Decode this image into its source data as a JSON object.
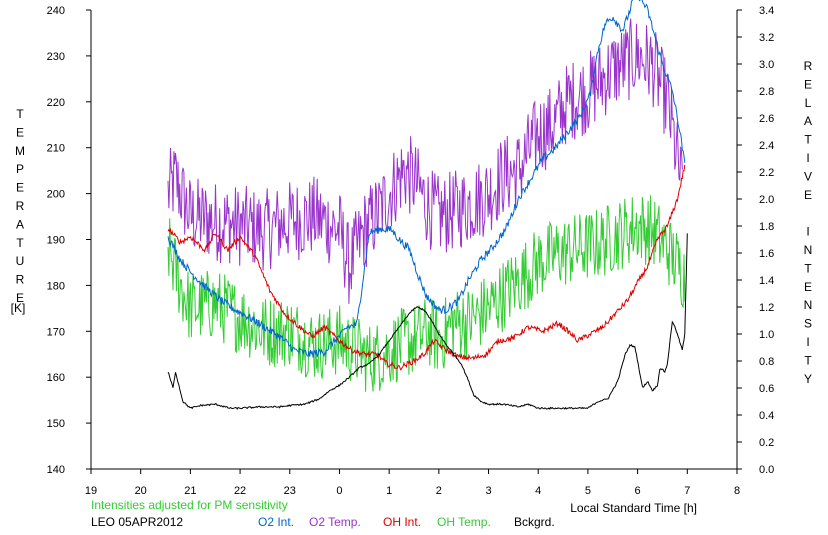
{
  "chart_data": {
    "type": "line",
    "xlabel": "Local Standard Time [h]",
    "left_axis": {
      "label": "TEMPERATURE",
      "unit": "[K]",
      "range": [
        140,
        240
      ],
      "ticks": [
        140,
        150,
        160,
        170,
        180,
        190,
        200,
        210,
        220,
        230,
        240
      ]
    },
    "right_axis": {
      "label": "RELATIVE INTENSITY",
      "range": [
        0.0,
        3.4
      ],
      "ticks": [
        "0.0",
        "0.2",
        "0.4",
        "0.6",
        "0.8",
        "1.0",
        "1.2",
        "1.4",
        "1.6",
        "1.8",
        "2.0",
        "2.2",
        "2.4",
        "2.6",
        "2.8",
        "3.0",
        "3.2",
        "3.4"
      ]
    },
    "x_ticks": [
      "19",
      "20",
      "21",
      "22",
      "23",
      "0",
      "1",
      "2",
      "3",
      "4",
      "5",
      "6",
      "7",
      "8"
    ],
    "grid": false,
    "note": "Intensities adjusted for PM sensitivity",
    "station": "LEO 05APR2012",
    "series": [
      {
        "name": "O2 Int.",
        "axis": "right",
        "color": "#0066cc",
        "jitter": 0.03,
        "x": [
          20.55,
          20.8,
          21.0,
          21.3,
          21.6,
          21.9,
          22.2,
          22.5,
          22.8,
          23.1,
          23.4,
          23.7,
          23.9,
          24.05,
          24.15,
          24.35,
          24.6,
          24.85,
          25.05,
          25.2,
          25.4,
          25.6,
          25.75,
          26.0,
          26.15,
          26.4,
          26.6,
          26.85,
          27.1,
          27.35,
          27.6,
          27.85,
          28.1,
          28.35,
          28.6,
          28.85,
          29.05,
          29.2,
          29.35,
          29.5,
          29.7,
          29.85,
          29.95,
          30.2,
          30.35,
          30.5,
          30.7,
          30.85,
          30.95
        ],
        "y": [
          1.72,
          1.55,
          1.46,
          1.35,
          1.25,
          1.18,
          1.12,
          1.05,
          0.98,
          0.88,
          0.85,
          0.87,
          0.95,
          1.0,
          1.05,
          1.07,
          1.75,
          1.78,
          1.77,
          1.7,
          1.63,
          1.42,
          1.28,
          1.18,
          1.18,
          1.25,
          1.4,
          1.55,
          1.65,
          1.78,
          2.0,
          2.15,
          2.3,
          2.38,
          2.5,
          2.62,
          2.78,
          3.1,
          3.3,
          3.35,
          3.25,
          3.4,
          3.55,
          3.4,
          3.2,
          3.0,
          2.8,
          2.5,
          2.25
        ]
      },
      {
        "name": "O2 Temp.",
        "axis": "left",
        "color": "#9933cc",
        "jitter": 9,
        "x": [
          20.55,
          20.7,
          21.0,
          21.5,
          22.0,
          22.5,
          23.0,
          23.5,
          24.0,
          24.2,
          24.5,
          24.8,
          25.0,
          25.3,
          25.5,
          25.8,
          26.0,
          26.5,
          27.0,
          27.3,
          27.6,
          28.0,
          28.3,
          28.6,
          29.0,
          29.5,
          30.0,
          30.3,
          30.6,
          30.9
        ],
        "y": [
          200,
          203,
          195,
          194,
          193,
          192,
          194,
          195,
          192,
          184,
          192,
          196,
          200,
          205,
          203,
          197,
          195,
          197,
          200,
          204,
          205,
          213,
          215,
          220,
          222,
          227,
          230,
          228,
          220,
          201
        ]
      },
      {
        "name": "OH Int.",
        "axis": "right",
        "color": "#dd0000",
        "jitter": 0.02,
        "x": [
          20.55,
          20.8,
          21.0,
          21.3,
          21.5,
          21.75,
          22.0,
          22.3,
          22.6,
          22.9,
          23.2,
          23.45,
          23.7,
          24.0,
          24.25,
          24.5,
          24.75,
          24.95,
          25.2,
          25.5,
          25.7,
          25.9,
          26.15,
          26.4,
          26.7,
          26.95,
          27.2,
          27.5,
          27.8,
          28.1,
          28.4,
          28.6,
          28.8,
          29.05,
          29.3,
          29.55,
          29.8,
          30.0,
          30.2,
          30.4,
          30.6,
          30.8,
          30.95
        ],
        "y": [
          1.78,
          1.68,
          1.72,
          1.62,
          1.75,
          1.62,
          1.72,
          1.58,
          1.32,
          1.15,
          1.05,
          0.98,
          1.05,
          0.95,
          0.88,
          0.85,
          0.85,
          0.78,
          0.75,
          0.8,
          0.85,
          0.95,
          0.88,
          0.83,
          0.82,
          0.85,
          0.95,
          0.97,
          1.05,
          1.02,
          1.08,
          1.02,
          0.95,
          1.0,
          1.05,
          1.15,
          1.25,
          1.38,
          1.5,
          1.7,
          1.8,
          2.0,
          2.25
        ]
      },
      {
        "name": "OH Temp.",
        "axis": "left",
        "color": "#33cc33",
        "jitter": 8,
        "x": [
          20.55,
          20.8,
          21.0,
          21.5,
          22.0,
          22.5,
          23.0,
          23.5,
          24.0,
          24.3,
          24.6,
          24.9,
          25.2,
          25.5,
          25.8,
          26.0,
          26.3,
          26.6,
          27.0,
          27.3,
          27.7,
          28.0,
          28.4,
          28.8,
          29.2,
          29.6,
          30.0,
          30.3,
          30.6,
          30.95
        ],
        "y": [
          188,
          180,
          175,
          176,
          173,
          170,
          170,
          167,
          168,
          166,
          164,
          165,
          167,
          168,
          170,
          168,
          172,
          172,
          175,
          178,
          182,
          185,
          187,
          188,
          189,
          191,
          193,
          192,
          188,
          182
        ]
      },
      {
        "name": "Bckgrd.",
        "axis": "right",
        "color": "#000000",
        "jitter": 0.006,
        "x": [
          20.55,
          20.65,
          20.7,
          20.85,
          21.0,
          21.2,
          21.5,
          21.8,
          22.0,
          22.4,
          22.8,
          23.0,
          23.3,
          23.6,
          23.8,
          24.0,
          24.2,
          24.4,
          24.6,
          24.8,
          25.0,
          25.2,
          25.4,
          25.55,
          25.7,
          25.85,
          26.0,
          26.15,
          26.3,
          26.45,
          26.6,
          26.7,
          26.85,
          27.0,
          27.3,
          27.6,
          27.8,
          28.0,
          28.2,
          28.4,
          28.6,
          28.8,
          29.0,
          29.2,
          29.4,
          29.6,
          29.75,
          29.85,
          29.95,
          30.1,
          30.2,
          30.3,
          30.4,
          30.45,
          30.55,
          30.6,
          30.7,
          30.8,
          30.9,
          30.95,
          31.0
        ],
        "y": [
          0.72,
          0.6,
          0.72,
          0.5,
          0.45,
          0.47,
          0.48,
          0.45,
          0.45,
          0.46,
          0.46,
          0.47,
          0.48,
          0.52,
          0.58,
          0.62,
          0.68,
          0.75,
          0.78,
          0.85,
          0.95,
          1.05,
          1.15,
          1.2,
          1.18,
          1.1,
          1.0,
          0.92,
          0.85,
          0.78,
          0.65,
          0.55,
          0.5,
          0.48,
          0.48,
          0.46,
          0.48,
          0.45,
          0.45,
          0.45,
          0.45,
          0.45,
          0.45,
          0.5,
          0.52,
          0.65,
          0.85,
          0.92,
          0.9,
          0.6,
          0.65,
          0.58,
          0.62,
          0.75,
          0.72,
          0.78,
          1.1,
          1.0,
          0.88,
          1.0,
          1.75
        ]
      }
    ]
  }
}
